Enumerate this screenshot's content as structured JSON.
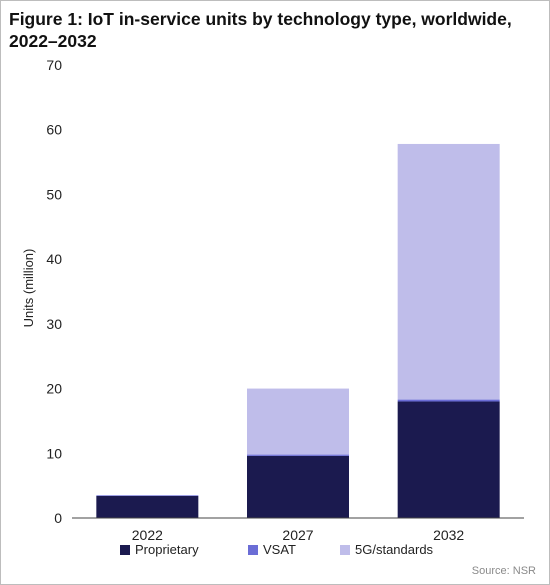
{
  "chart_data": {
    "type": "bar",
    "stacked": true,
    "title": "Figure 1: IoT in-service units by technology type, worldwide, 2022–2032",
    "xlabel": "",
    "ylabel": "Units (million)",
    "ylim": [
      0,
      70
    ],
    "yticks": [
      "0",
      "10",
      "20",
      "30",
      "40",
      "50",
      "60",
      "70"
    ],
    "categories": [
      "2022",
      "2027",
      "2032"
    ],
    "series": [
      {
        "name": "Proprietary",
        "color": "#1b1a4f",
        "values": [
          3.4,
          9.6,
          18.0
        ]
      },
      {
        "name": "VSAT",
        "color": "#6b6dd6",
        "values": [
          0.1,
          0.2,
          0.3
        ]
      },
      {
        "name": "5G/standards",
        "color": "#bfbdea",
        "values": [
          0.0,
          10.2,
          39.5
        ]
      }
    ],
    "grid": false,
    "legend_position": "bottom",
    "source": "Source: NSR"
  }
}
